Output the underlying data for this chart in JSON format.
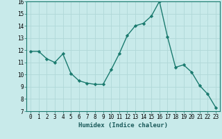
{
  "x": [
    0,
    1,
    2,
    3,
    4,
    5,
    6,
    7,
    8,
    9,
    10,
    11,
    12,
    13,
    14,
    15,
    16,
    17,
    18,
    19,
    20,
    21,
    22,
    23
  ],
  "y": [
    11.9,
    11.9,
    11.3,
    11.0,
    11.7,
    10.1,
    9.5,
    9.3,
    9.2,
    9.2,
    10.4,
    11.7,
    13.2,
    14.0,
    14.2,
    14.8,
    16.0,
    13.1,
    10.6,
    10.8,
    10.2,
    9.1,
    8.4,
    7.3
  ],
  "xlabel": "Humidex (Indice chaleur)",
  "ylim": [
    7,
    16
  ],
  "xlim": [
    -0.5,
    23.5
  ],
  "yticks": [
    7,
    8,
    9,
    10,
    11,
    12,
    13,
    14,
    15,
    16
  ],
  "xticks": [
    0,
    1,
    2,
    3,
    4,
    5,
    6,
    7,
    8,
    9,
    10,
    11,
    12,
    13,
    14,
    15,
    16,
    17,
    18,
    19,
    20,
    21,
    22,
    23
  ],
  "line_color": "#1a7a6e",
  "marker": "D",
  "marker_size": 2.2,
  "bg_color": "#c8eaea",
  "grid_color": "#b0d8d8",
  "tick_fontsize": 5.5,
  "xlabel_fontsize": 6.5
}
